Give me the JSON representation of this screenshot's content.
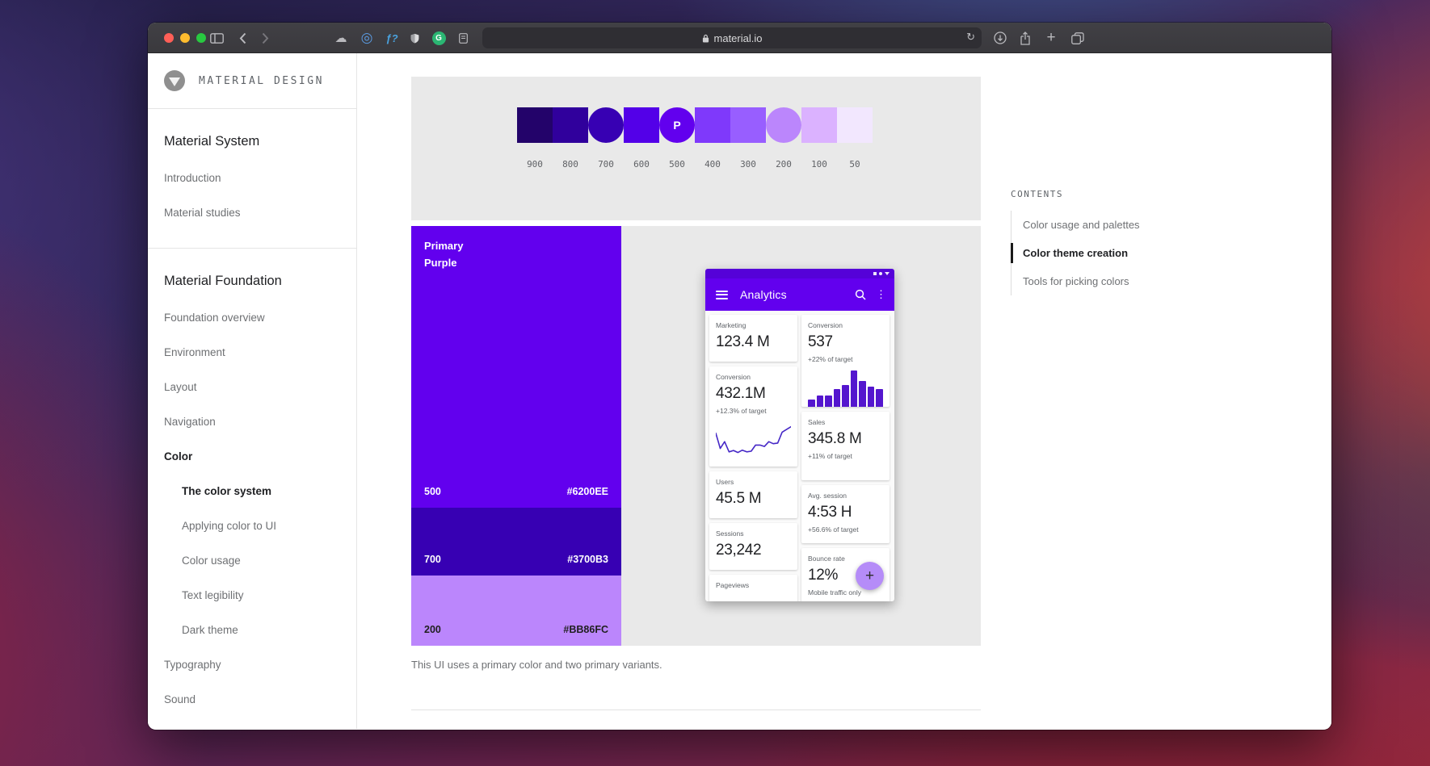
{
  "browser": {
    "address": "material.io",
    "reload_glyph": "↻",
    "plus_glyph": "+",
    "fonts_ext_glyph": "ƒ?",
    "grammarly_glyph": "G",
    "overflow_glyph": "⋮"
  },
  "sidebar": {
    "brand": "MATERIAL DESIGN",
    "section1": {
      "heading": "Material System",
      "items": [
        {
          "label": "Introduction"
        },
        {
          "label": "Material studies"
        }
      ]
    },
    "section2": {
      "heading": "Material Foundation",
      "items": [
        {
          "label": "Foundation overview"
        },
        {
          "label": "Environment"
        },
        {
          "label": "Layout"
        },
        {
          "label": "Navigation"
        },
        {
          "label": "Color"
        },
        {
          "label": "The color system"
        },
        {
          "label": "Applying color to UI"
        },
        {
          "label": "Color usage"
        },
        {
          "label": "Text legibility"
        },
        {
          "label": "Dark theme"
        },
        {
          "label": "Typography"
        },
        {
          "label": "Sound"
        }
      ]
    }
  },
  "contents": {
    "label": "CONTENTS",
    "items": [
      {
        "label": "Color usage and palettes",
        "active": false
      },
      {
        "label": "Color theme creation",
        "active": true
      },
      {
        "label": "Tools for picking colors",
        "active": false
      }
    ]
  },
  "palette": {
    "swatches": [
      {
        "value": "900",
        "color": "#23036A",
        "shape": "square"
      },
      {
        "value": "800",
        "color": "#30009C",
        "shape": "square"
      },
      {
        "value": "700",
        "color": "#3700B3",
        "shape": "circle"
      },
      {
        "value": "600",
        "color": "#5300E8",
        "shape": "square"
      },
      {
        "value": "500",
        "color": "#6200EE",
        "shape": "circle",
        "label": "P"
      },
      {
        "value": "400",
        "color": "#7F39FB",
        "shape": "square"
      },
      {
        "value": "300",
        "color": "#985EFF",
        "shape": "square"
      },
      {
        "value": "200",
        "color": "#BB86FC",
        "shape": "circle"
      },
      {
        "value": "100",
        "color": "#DBB2FF",
        "shape": "square"
      },
      {
        "value": "50",
        "color": "#F2E7FE",
        "shape": "square"
      }
    ]
  },
  "figure": {
    "primary": {
      "line1": "Primary",
      "line2": "Purple",
      "value": "500",
      "hex": "#6200EE",
      "color": "#6200EE"
    },
    "variant_dark": {
      "value": "700",
      "hex": "#3700B3",
      "color": "#3700B3"
    },
    "variant_light": {
      "value": "200",
      "hex": "#BB86FC",
      "color": "#BB86FC"
    },
    "caption": "This UI uses a primary color and two primary variants."
  },
  "phone": {
    "status_bar_color": "#5502D8",
    "app_bar": {
      "title": "Analytics",
      "color": "#6200EE"
    },
    "fab": {
      "label": "+",
      "color": "#B58CF8"
    },
    "left_cards": [
      {
        "label": "Marketing",
        "value": "123.4 M"
      },
      {
        "label": "Conversion",
        "value": "432.1M",
        "sub": "+12.3% of target"
      },
      {
        "label": "Users",
        "value": "45.5 M"
      },
      {
        "label": "Sessions",
        "value": "23,242"
      },
      {
        "label": "Pageviews"
      }
    ],
    "right_cards": [
      {
        "label": "Conversion",
        "value": "537",
        "sub": "+22% of target"
      },
      {
        "label": "Sales",
        "value": "345.8 M",
        "sub": "+11% of target"
      },
      {
        "label": "Avg. session",
        "value": "4:53 H",
        "sub": "+56.6% of target"
      },
      {
        "label": "Bounce rate",
        "value": "12%",
        "sub": "Mobile traffic only"
      }
    ]
  },
  "chart_data": [
    {
      "type": "line",
      "title": "Conversion 432.1M trend",
      "values": [
        65,
        20,
        40,
        10,
        14,
        8,
        15,
        10,
        12,
        30,
        30,
        26,
        40,
        34,
        36,
        68,
        76,
        84
      ],
      "color": "#4527C6"
    },
    {
      "type": "bar",
      "title": "Conversion 537 vs target",
      "values": [
        9,
        14,
        14,
        22,
        27,
        45,
        32,
        25,
        22
      ],
      "color": "#5416CE"
    }
  ]
}
